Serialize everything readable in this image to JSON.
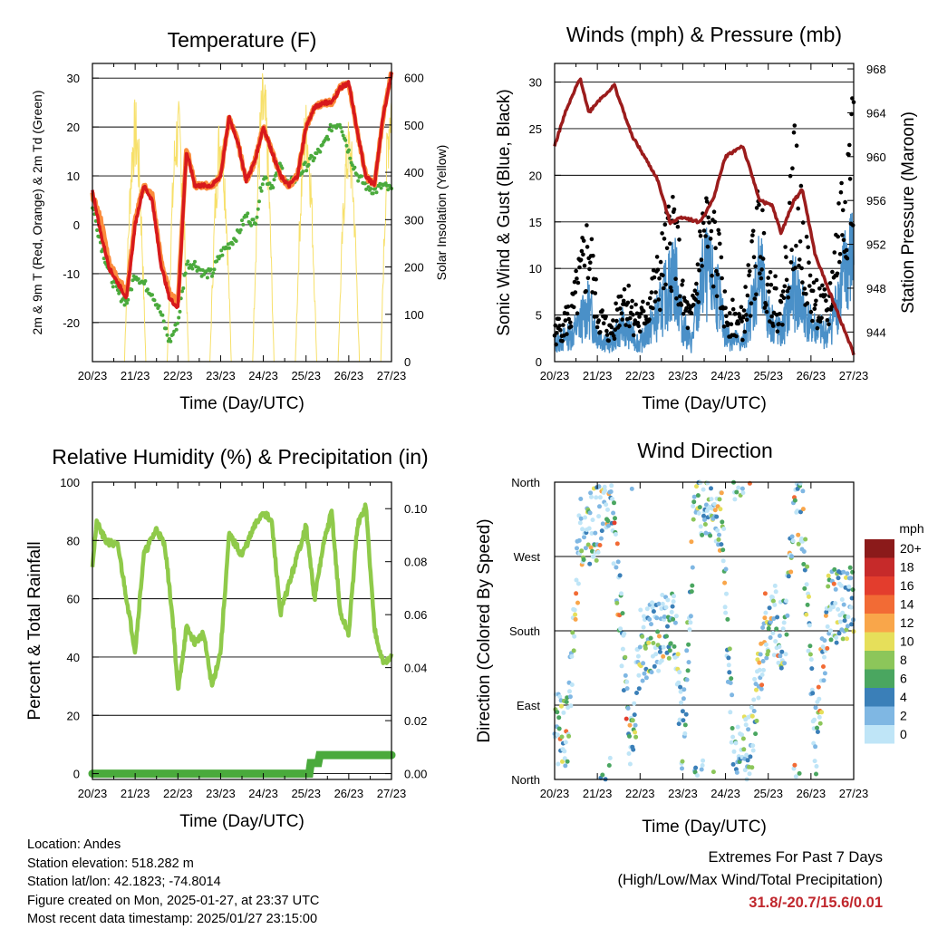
{
  "colors": {
    "t2m": "#d7191c",
    "t9m": "#fb8c3c",
    "td": "#4aaa3c",
    "solar": "#f7e06a",
    "sonic": "#4a90c8",
    "gust": "#000000",
    "pressure": "#9b1c1c",
    "rh": "#8fca4a",
    "precip": "#4aaa3c",
    "grid": "#000000"
  },
  "time_ticks": [
    "20/23",
    "21/23",
    "22/23",
    "23/23",
    "24/23",
    "25/23",
    "26/23",
    "27/23"
  ],
  "chart_data": [
    {
      "id": "temperature",
      "type": "line",
      "title": "Temperature (F)",
      "xlabel": "Time (Day/UTC)",
      "ylabel": "2m & 9m T (Red, Orange) & 2m Td (Green)",
      "y2label": "Solar Insolation (Yellow)",
      "x_ticks": [
        "20/23",
        "21/23",
        "22/23",
        "23/23",
        "24/23",
        "25/23",
        "26/23",
        "27/23"
      ],
      "ylim": [
        -28,
        33
      ],
      "yticks": [
        -20,
        -10,
        0,
        10,
        20,
        30
      ],
      "y2lim": [
        0,
        630
      ],
      "y2ticks": [
        0,
        100,
        200,
        300,
        400,
        500,
        600
      ],
      "series": [
        {
          "name": "2m T",
          "x": [
            0,
            0.2,
            0.4,
            0.6,
            0.8,
            1.0,
            1.2,
            1.4,
            1.6,
            1.8,
            2.0,
            2.2,
            2.4,
            2.6,
            2.8,
            3.0,
            3.2,
            3.4,
            3.6,
            3.8,
            4.0,
            4.2,
            4.4,
            4.6,
            4.8,
            5.0,
            5.2,
            5.4,
            5.6,
            5.8,
            6.0,
            6.2,
            6.4,
            6.6,
            6.8,
            7.0
          ],
          "values": [
            7,
            -2,
            -9,
            -12,
            -15,
            0,
            8,
            5,
            -8,
            -15,
            -17,
            15,
            8,
            8,
            8,
            10,
            22,
            17,
            9,
            13,
            20,
            15,
            10,
            8,
            10,
            20,
            24,
            25,
            25,
            28,
            29,
            19,
            10,
            8,
            22,
            31
          ]
        },
        {
          "name": "9m T",
          "x": [
            0,
            0.2,
            0.4,
            0.6,
            0.8,
            1.0,
            1.2,
            1.4,
            1.6,
            1.8,
            2.0,
            2.2,
            2.4,
            2.6,
            2.8,
            3.0,
            3.2,
            3.4,
            3.6,
            3.8,
            4.0,
            4.2,
            4.4,
            4.6,
            4.8,
            5.0,
            5.2,
            5.4,
            5.6,
            5.8,
            6.0,
            6.2,
            6.4,
            6.6,
            6.8,
            7.0
          ],
          "values": [
            6,
            1,
            -8,
            -11,
            -14,
            1,
            8,
            6,
            -7,
            -14,
            -16,
            16,
            8,
            8,
            8,
            10,
            22,
            17,
            9,
            13,
            20,
            15,
            10,
            8,
            10,
            20,
            24,
            25,
            25,
            28,
            29,
            19,
            10,
            8,
            22,
            31
          ]
        },
        {
          "name": "2m Td",
          "x": [
            0,
            0.2,
            0.4,
            0.6,
            0.8,
            1.0,
            1.2,
            1.4,
            1.6,
            1.8,
            2.0,
            2.2,
            2.4,
            2.6,
            2.8,
            3.0,
            3.2,
            3.4,
            3.6,
            3.8,
            4.0,
            4.2,
            4.4,
            4.6,
            4.8,
            5.0,
            5.2,
            5.4,
            5.6,
            5.8,
            6.0,
            6.2,
            6.4,
            6.6,
            6.8,
            7.0
          ],
          "values": [
            4,
            -4,
            -10,
            -14,
            -16,
            -10,
            -12,
            -14,
            -18,
            -24,
            -20,
            -8,
            -8,
            -10,
            -10,
            -6,
            -4,
            -2,
            2,
            0,
            10,
            8,
            12,
            8,
            10,
            12,
            14,
            16,
            20,
            21,
            15,
            10,
            8,
            7,
            8,
            7
          ]
        },
        {
          "name": "Solar Insolation",
          "axis": "y2",
          "x": [
            0.75,
            1.0,
            1.25,
            1.75,
            2.0,
            2.25,
            2.75,
            3.0,
            3.25,
            3.75,
            4.0,
            4.25,
            4.75,
            5.0,
            5.25,
            5.75,
            6.0,
            6.25,
            6.75,
            7.0
          ],
          "values": [
            0,
            560,
            0,
            0,
            560,
            0,
            0,
            540,
            0,
            0,
            620,
            0,
            0,
            560,
            0,
            0,
            520,
            0,
            0,
            630
          ]
        }
      ]
    },
    {
      "id": "winds",
      "type": "scatter",
      "title": "Winds (mph) & Pressure (mb)",
      "xlabel": "Time (Day/UTC)",
      "ylabel": "Sonic Wind & Gust (Blue, Black)",
      "y2label": "Station Pressure (Maroon)",
      "x_ticks": [
        "20/23",
        "21/23",
        "22/23",
        "23/23",
        "24/23",
        "25/23",
        "26/23",
        "27/23"
      ],
      "ylim": [
        0,
        32
      ],
      "yticks": [
        0,
        5,
        10,
        15,
        20,
        25,
        30
      ],
      "y2lim": [
        941.3,
        968.5
      ],
      "y2ticks": [
        944,
        948,
        952,
        956,
        960,
        964,
        968
      ],
      "series": [
        {
          "name": "Sonic Wind (mean)",
          "x": [
            0,
            0.4,
            0.8,
            1.0,
            1.3,
            1.6,
            2.0,
            2.4,
            2.8,
            3.0,
            3.2,
            3.5,
            3.8,
            4.0,
            4.4,
            4.8,
            5.0,
            5.3,
            5.6,
            6.0,
            6.4,
            6.8,
            7.0
          ],
          "values": [
            2,
            3,
            6,
            3,
            2,
            4,
            2,
            5,
            10,
            4,
            2,
            10,
            8,
            3,
            2,
            10,
            5,
            3,
            8,
            4,
            3,
            10,
            12
          ]
        },
        {
          "name": "Gust (mean)",
          "x": [
            0,
            0.4,
            0.8,
            1.0,
            1.3,
            1.6,
            2.0,
            2.4,
            2.8,
            3.0,
            3.2,
            3.5,
            3.8,
            4.0,
            4.4,
            4.8,
            5.0,
            5.3,
            5.6,
            6.0,
            6.4,
            6.8,
            7.0
          ],
          "values": [
            3,
            5,
            12,
            5,
            3,
            7,
            4,
            8,
            14,
            6,
            4,
            14,
            11,
            5,
            4,
            14,
            8,
            5,
            18,
            7,
            5,
            18,
            22
          ]
        },
        {
          "name": "Station Pressure",
          "axis": "y2",
          "x": [
            0,
            0.25,
            0.6,
            0.8,
            1.0,
            1.4,
            1.8,
            2.1,
            2.4,
            2.7,
            3.0,
            3.4,
            3.7,
            4.0,
            4.4,
            4.8,
            5.1,
            5.3,
            5.6,
            5.8,
            6.1,
            6.4,
            6.8,
            7.0
          ],
          "values": [
            961,
            964,
            967.2,
            964,
            965,
            966.5,
            962,
            960,
            958,
            954,
            954.5,
            954,
            956,
            960,
            961,
            956,
            955.5,
            953,
            956,
            957,
            951,
            948,
            944,
            942
          ]
        }
      ]
    },
    {
      "id": "humidity",
      "type": "line",
      "title": "Relative Humidity (%) & Precipitation (in)",
      "xlabel": "Time (Day/UTC)",
      "ylabel": "Percent & Total Rainfall",
      "x_ticks": [
        "20/23",
        "21/23",
        "22/23",
        "23/23",
        "24/23",
        "25/23",
        "26/23",
        "27/23"
      ],
      "ylim": [
        -2,
        100
      ],
      "yticks": [
        0,
        20,
        40,
        60,
        80,
        100
      ],
      "y2lim": [
        -0.0022,
        0.11
      ],
      "y2ticks": [
        "0.00",
        "0.02",
        "0.04",
        "0.06",
        "0.08",
        "0.10"
      ],
      "series": [
        {
          "name": "Relative Humidity",
          "x": [
            0,
            0.1,
            0.3,
            0.6,
            0.8,
            1.0,
            1.2,
            1.5,
            1.7,
            1.9,
            2.0,
            2.2,
            2.4,
            2.6,
            2.8,
            3.0,
            3.2,
            3.5,
            3.8,
            4.0,
            4.2,
            4.4,
            4.7,
            5.0,
            5.2,
            5.4,
            5.6,
            5.8,
            6.0,
            6.2,
            6.4,
            6.6,
            6.8,
            7.0
          ],
          "values": [
            72,
            86,
            80,
            78,
            60,
            42,
            75,
            84,
            78,
            50,
            28,
            50,
            45,
            48,
            30,
            42,
            82,
            75,
            85,
            90,
            86,
            55,
            70,
            85,
            60,
            78,
            90,
            55,
            48,
            85,
            92,
            50,
            38,
            40
          ]
        },
        {
          "name": "Total Precipitation",
          "axis": "y2",
          "x": [
            0,
            5.1,
            5.3,
            5.4,
            7.0
          ],
          "values": [
            0,
            0,
            0.004,
            0.007,
            0.007
          ]
        }
      ]
    },
    {
      "id": "wind_direction",
      "type": "scatter",
      "title": "Wind Direction",
      "xlabel": "Time (Day/UTC)",
      "ylabel": "Direction (Colored By Speed)",
      "x_ticks": [
        "20/23",
        "21/23",
        "22/23",
        "23/23",
        "24/23",
        "25/23",
        "26/23",
        "27/23"
      ],
      "yticks": [
        "North",
        "East",
        "South",
        "West",
        "North"
      ],
      "ylim": [
        0,
        360
      ],
      "legend": {
        "title": "mph",
        "labels": [
          "20+",
          "18",
          "16",
          "14",
          "12",
          "10",
          "8",
          "6",
          "4",
          "2",
          "0"
        ],
        "colors": [
          "#8b1a1a",
          "#c62a2a",
          "#e33d2d",
          "#f26b35",
          "#f9a64a",
          "#e6df5a",
          "#8cc65a",
          "#4aa660",
          "#3a7fb8",
          "#7fb7e3",
          "#bfe5f7"
        ]
      },
      "series": [
        {
          "name": "Direction",
          "x": [
            0.3,
            0.6,
            1.0,
            1.3,
            1.8,
            2.0,
            2.2,
            2.4,
            2.6,
            2.8,
            3.0,
            3.3,
            3.6,
            3.9,
            4.2,
            4.6,
            4.9,
            5.1,
            5.4,
            5.6,
            5.8,
            6.1,
            6.4,
            6.7,
            7.0
          ],
          "values": [
            60,
            300,
            310,
            350,
            30,
            160,
            170,
            175,
            185,
            200,
            40,
            350,
            330,
            320,
            20,
            40,
            180,
            195,
            170,
            340,
            320,
            40,
            210,
            210,
            220
          ]
        }
      ]
    }
  ],
  "info": {
    "location": "Location: Andes",
    "elevation": "Station elevation: 518.282 m",
    "latlon": "Station lat/lon: 42.1823; -74.8014",
    "created": "Figure created on Mon, 2025-01-27, at 23:37 UTC",
    "recent": "Most recent data timestamp: 2025/01/27 23:15:00"
  },
  "extremes": {
    "title": "Extremes For Past 7 Days",
    "subtitle": "(High/Low/Max Wind/Total Precipitation)",
    "values": "31.8/-20.7/15.6/0.01"
  }
}
